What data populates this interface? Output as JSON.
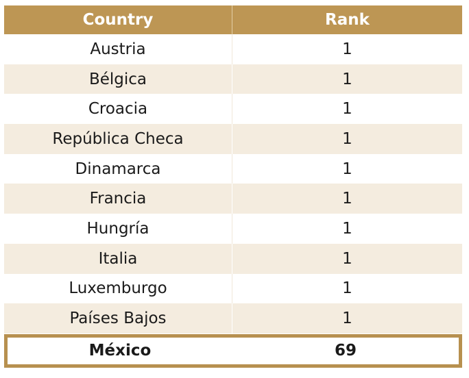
{
  "table": {
    "headers": {
      "country": "Country",
      "rank": "Rank"
    },
    "rows": [
      {
        "country": "Austria",
        "rank": "1"
      },
      {
        "country": "Bélgica",
        "rank": "1"
      },
      {
        "country": "Croacia",
        "rank": "1"
      },
      {
        "country": "República Checa",
        "rank": "1"
      },
      {
        "country": "Dinamarca",
        "rank": "1"
      },
      {
        "country": "Francia",
        "rank": "1"
      },
      {
        "country": "Hungría",
        "rank": "1"
      },
      {
        "country": "Italia",
        "rank": "1"
      },
      {
        "country": "Luxemburgo",
        "rank": "1"
      },
      {
        "country": "Países Bajos",
        "rank": "1"
      }
    ],
    "highlight": {
      "country": "México",
      "rank": "69"
    }
  },
  "colors": {
    "header_bg": "#bd9654",
    "shade_row": "#f4ecdf",
    "highlight_border": "#b7904f"
  }
}
